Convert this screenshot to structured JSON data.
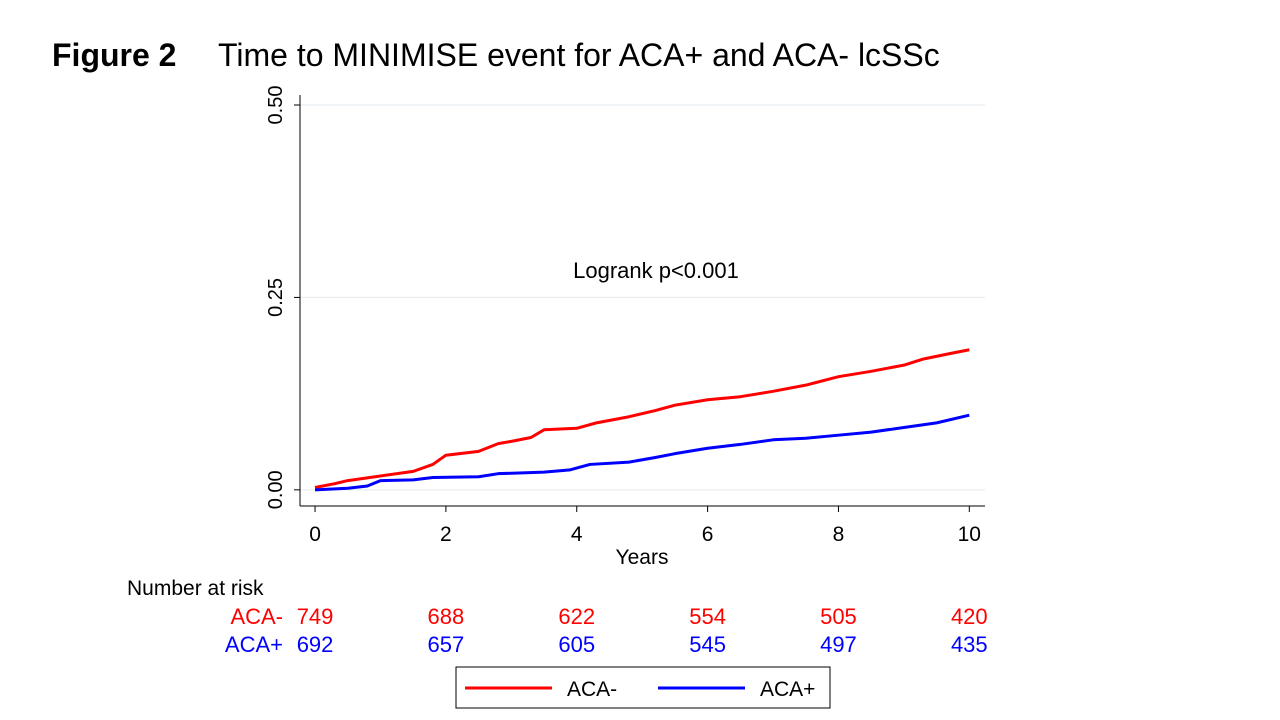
{
  "chart_data": {
    "type": "line",
    "figure_label": "Figure 2",
    "title": "Time to MINIMISE event for ACA+ and ACA- lcSSc",
    "annotation": "Logrank p<0.001",
    "x_label": "Years",
    "xlim": [
      -0.23,
      10.24
    ],
    "ylim": [
      -0.021,
      0.5
    ],
    "xticks": [
      0,
      2,
      4,
      6,
      8,
      10
    ],
    "yticks": [
      {
        "value": 0,
        "label": "0.00"
      },
      {
        "value": 0.25,
        "label": "0.25"
      },
      {
        "value": 0.5,
        "label": "0.50"
      }
    ],
    "grid": true,
    "series": [
      {
        "name": "ACA-",
        "color": "#ff0000",
        "x": [
          0,
          0.3,
          0.5,
          1.0,
          1.5,
          1.8,
          2.0,
          2.5,
          2.8,
          3.0,
          3.3,
          3.5,
          4.0,
          4.3,
          4.8,
          5.2,
          5.5,
          6.0,
          6.5,
          7.0,
          7.5,
          8.0,
          8.5,
          9.0,
          9.3,
          9.7,
          10
        ],
        "values": [
          0.003,
          0.008,
          0.012,
          0.018,
          0.024,
          0.033,
          0.045,
          0.05,
          0.06,
          0.063,
          0.068,
          0.078,
          0.08,
          0.087,
          0.095,
          0.103,
          0.11,
          0.117,
          0.121,
          0.128,
          0.136,
          0.147,
          0.154,
          0.162,
          0.17,
          0.177,
          0.182
        ]
      },
      {
        "name": "ACA+",
        "color": "#0000ff",
        "x": [
          0,
          0.5,
          0.8,
          1.0,
          1.5,
          1.8,
          2.5,
          2.8,
          3.5,
          3.9,
          4.2,
          4.8,
          5.2,
          5.5,
          6.0,
          6.5,
          7.0,
          7.5,
          8.0,
          8.5,
          9.0,
          9.5,
          10
        ],
        "values": [
          0,
          0.002,
          0.005,
          0.012,
          0.013,
          0.016,
          0.017,
          0.021,
          0.023,
          0.026,
          0.033,
          0.036,
          0.042,
          0.047,
          0.054,
          0.059,
          0.065,
          0.067,
          0.071,
          0.075,
          0.081,
          0.087,
          0.097
        ]
      }
    ],
    "risk_table": {
      "title": "Number at risk",
      "rows": [
        {
          "label": "ACA-",
          "values": [
            749,
            688,
            622,
            554,
            505,
            420
          ]
        },
        {
          "label": "ACA+",
          "values": [
            692,
            657,
            605,
            545,
            497,
            435
          ]
        }
      ]
    }
  }
}
